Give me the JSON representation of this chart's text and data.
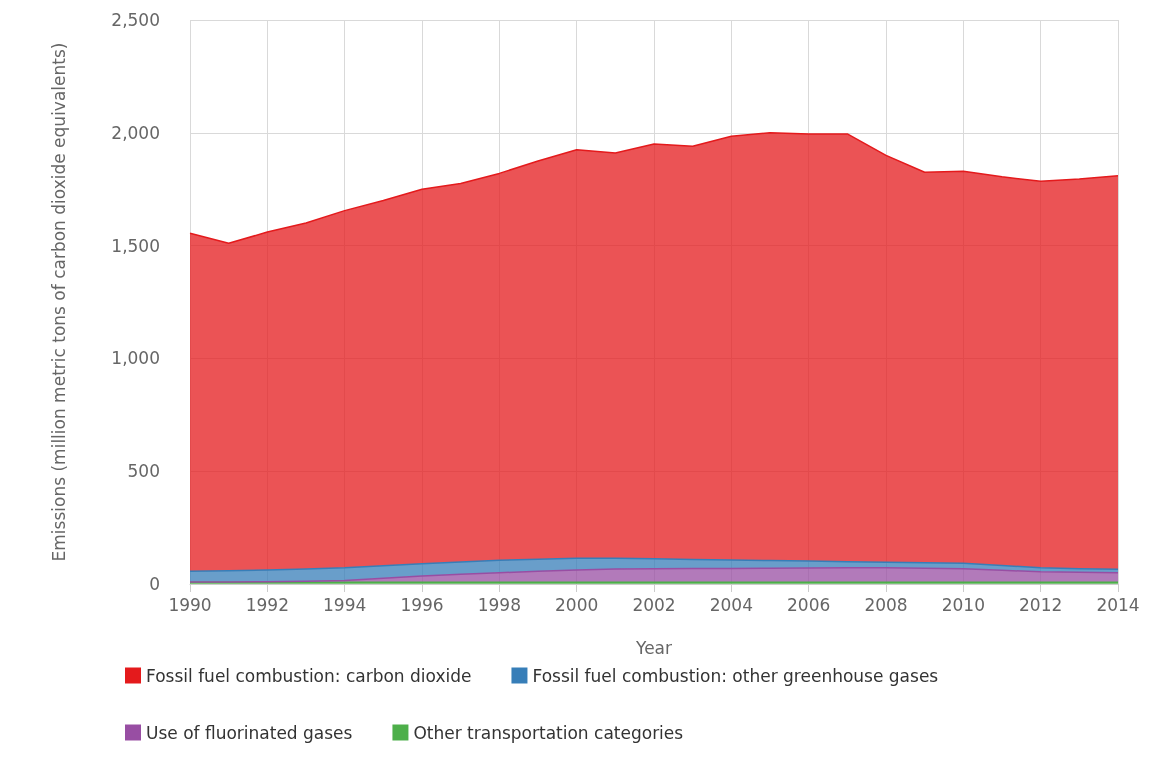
{
  "chart_data": {
    "type": "area",
    "stacked": true,
    "xlabel": "Year",
    "ylabel": "Emissions (million metric tons of carbon dioxide equivalents)",
    "categories": [
      "1990",
      null,
      "1992",
      null,
      "1994",
      null,
      "1996",
      null,
      "1998",
      null,
      "2000",
      null,
      "2002",
      null,
      "2004",
      null,
      "2006",
      null,
      "2008",
      null,
      "2010",
      null,
      "2012",
      null,
      "2014"
    ],
    "series": [
      {
        "name": "Other transportation categories",
        "color": "#4daf4a",
        "values": [
          8,
          8,
          8,
          8,
          8,
          8,
          8,
          8,
          8,
          8,
          8,
          8,
          8,
          8,
          8,
          8,
          8,
          8,
          8,
          8,
          8,
          8,
          8,
          8,
          8
        ]
      },
      {
        "name": "Use of fluorinated gases",
        "color": "#984ea3",
        "values": [
          1,
          1,
          2,
          4,
          8,
          17,
          27,
          35,
          42,
          48,
          54,
          58,
          60,
          61,
          61,
          62,
          63,
          64,
          64,
          62,
          60,
          53,
          46,
          44,
          42
        ]
      },
      {
        "name": "Fossil fuel combustion: other greenhouse gases",
        "color": "#377eb8",
        "values": [
          48,
          50,
          52,
          55,
          56,
          56,
          55,
          55,
          55,
          54,
          52,
          48,
          44,
          40,
          37,
          34,
          31,
          27,
          24,
          24,
          24,
          21,
          18,
          16,
          15
        ]
      },
      {
        "name": "Fossil fuel combustion: carbon dioxide",
        "color": "#e41a1c",
        "values": [
          1498,
          1451,
          1498,
          1533,
          1583,
          1619,
          1660,
          1677,
          1715,
          1765,
          1811,
          1796,
          1838,
          1831,
          1879,
          1896,
          1893,
          1896,
          1804,
          1731,
          1738,
          1723,
          1713,
          1727,
          1745
        ]
      }
    ],
    "ylim": [
      0,
      2500
    ],
    "yticks": [
      0,
      500,
      {
        "value": 1000,
        "label": "1,000"
      },
      {
        "value": 1500,
        "label": "1,500"
      },
      {
        "value": 2000,
        "label": "2,000"
      },
      {
        "value": 2500,
        "label": "2,500"
      }
    ],
    "grid": true,
    "legend": "bottom"
  }
}
